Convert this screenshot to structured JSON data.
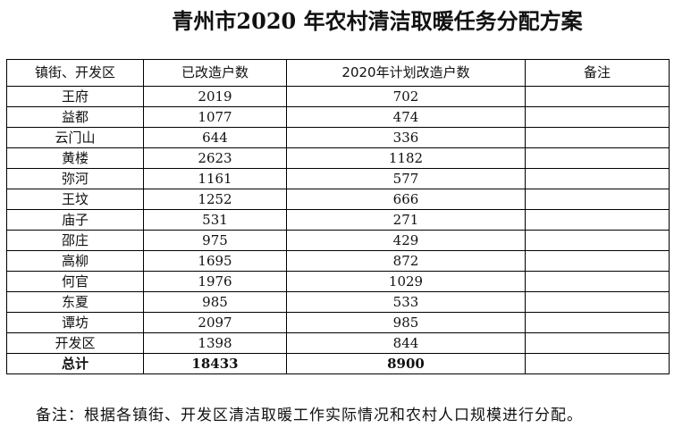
{
  "header": {
    "title": "青州市2020 年农村清洁取暖任务分配方案"
  },
  "table": {
    "columns": [
      "镇街、开发区",
      "已改造户数",
      "2020年计划改造户数",
      "备注"
    ],
    "rows": [
      [
        "王府",
        2019,
        702
      ],
      [
        "益都",
        1077,
        474
      ],
      [
        "云门山",
        644,
        336
      ],
      [
        "黄楼",
        2623,
        1182
      ],
      [
        "弥河",
        1161,
        577
      ],
      [
        "王坟",
        1252,
        666
      ],
      [
        "庙子",
        531,
        271
      ],
      [
        "邵庄",
        975,
        429
      ],
      [
        "高柳",
        1695,
        872
      ],
      [
        "何官",
        1976,
        1029
      ],
      [
        "东夏",
        985,
        533
      ],
      [
        "谭坊",
        2097,
        985
      ],
      [
        "开发区",
        1398,
        844
      ]
    ],
    "total": [
      "总计",
      18433,
      8900
    ]
  },
  "note": "备注：根据各镇街、开发区清洁取暖工作实际情况和农村人口规模进行分配。"
}
